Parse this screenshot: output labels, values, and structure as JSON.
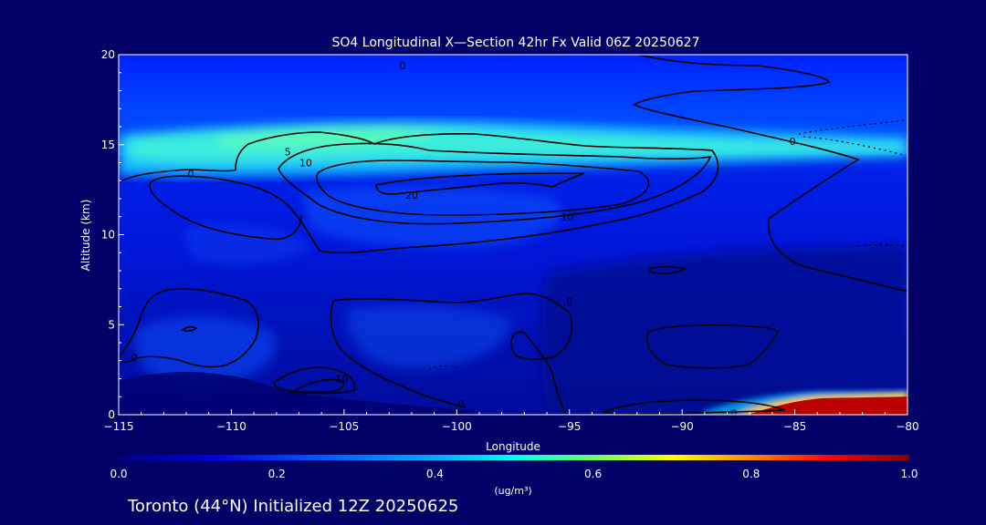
{
  "chart_data": {
    "type": "heatmap",
    "title": "SO4 Longitudinal X—Section 42hr  Fx Valid 06Z 20250627",
    "xlabel": "Longitude",
    "ylabel": "Altitude (km)",
    "xlim": [
      -115,
      -80
    ],
    "ylim": [
      0,
      20
    ],
    "x_ticks": [
      -115,
      -110,
      -105,
      -100,
      -95,
      -90,
      -85,
      -80
    ],
    "x_tick_labels": [
      "−115",
      "−110",
      "−105",
      "−100",
      "−95",
      "−90",
      "−85",
      "−80"
    ],
    "y_ticks": [
      0,
      5,
      10,
      15,
      20
    ],
    "y_tick_labels": [
      "0",
      "5",
      "10",
      "15",
      "20"
    ],
    "colorbar": {
      "range": [
        0.0,
        1.0
      ],
      "ticks": [
        0.0,
        0.2,
        0.4,
        0.6,
        0.8,
        1.0
      ],
      "tick_labels": [
        "0.0",
        "0.2",
        "0.4",
        "0.6",
        "0.8",
        "1.0"
      ],
      "unit_label": "(ug/m³)"
    },
    "contour_labels": [
      {
        "text": "0",
        "lon": -102.4,
        "alt": 19.4
      },
      {
        "text": "0",
        "lon": -85.1,
        "alt": 15.2
      },
      {
        "text": "0",
        "lon": -111.8,
        "alt": 13.4
      },
      {
        "text": "5",
        "lon": -107.5,
        "alt": 14.6
      },
      {
        "text": "10",
        "lon": -106.7,
        "alt": 14.0
      },
      {
        "text": "20",
        "lon": -102.0,
        "alt": 12.2
      },
      {
        "text": "10",
        "lon": -95.1,
        "alt": 11.0
      },
      {
        "text": "0",
        "lon": -95.0,
        "alt": 6.3
      },
      {
        "text": "0",
        "lon": -114.3,
        "alt": 3.2
      },
      {
        "text": "10",
        "lon": -105.1,
        "alt": 2.0
      },
      {
        "text": "0",
        "lon": -99.8,
        "alt": 0.6
      },
      {
        "text": "0",
        "lon": -87.7,
        "alt": 0.1
      }
    ],
    "colors": {
      "background": "#000066",
      "colormap": [
        "#000080",
        "#0000dd",
        "#0055ff",
        "#00aaff",
        "#00ffee",
        "#66ff66",
        "#ffff00",
        "#ff8800",
        "#ff0000",
        "#880000"
      ]
    }
  },
  "footer": {
    "caption": "Toronto (44°N) Initialized 12Z 20250625"
  }
}
